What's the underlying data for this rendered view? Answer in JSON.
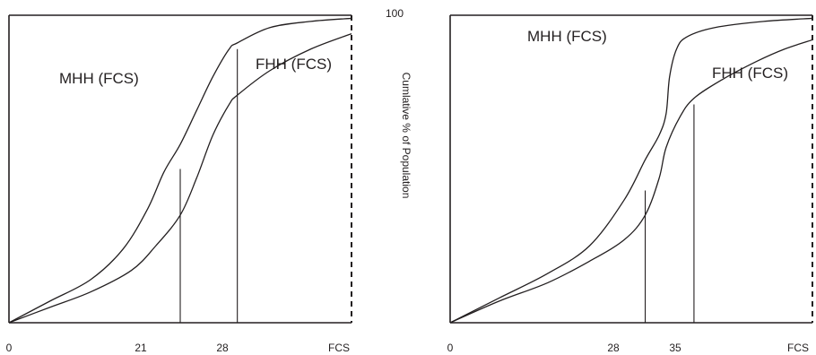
{
  "chart_data": [
    {
      "type": "line",
      "title": "",
      "xlabel": "FCS",
      "ylabel": "Cumlative % of Population",
      "ylim": [
        0,
        100
      ],
      "x_ticks": [
        "0",
        "21",
        "28",
        "FCS"
      ],
      "series": [
        {
          "name": "MHH (FCS)",
          "points": [
            [
              0,
              0
            ],
            [
              5,
              7
            ],
            [
              10,
              14
            ],
            [
              14,
              24
            ],
            [
              17,
              37
            ],
            [
              19,
              49
            ],
            [
              21,
              58
            ],
            [
              23,
              69
            ],
            [
              25,
              80
            ],
            [
              27,
              89
            ],
            [
              28,
              91
            ],
            [
              32,
              96
            ],
            [
              37,
              98
            ],
            [
              42,
              99
            ]
          ]
        },
        {
          "name": "FHH (FCS)",
          "points": [
            [
              0,
              0
            ],
            [
              5,
              5
            ],
            [
              10,
              10
            ],
            [
              15,
              17
            ],
            [
              18,
              25
            ],
            [
              21,
              35
            ],
            [
              23,
              47
            ],
            [
              25,
              61
            ],
            [
              27,
              71
            ],
            [
              28,
              74
            ],
            [
              32,
              82
            ],
            [
              37,
              89
            ],
            [
              42,
              94
            ]
          ]
        }
      ],
      "marker_lines": [
        {
          "x": 21,
          "y": 50
        },
        {
          "x": 28,
          "y": 89
        }
      ],
      "xlim": [
        0,
        42
      ]
    },
    {
      "type": "line",
      "title": "",
      "xlabel": "FCS",
      "ylabel": "",
      "ylim": [
        0,
        100
      ],
      "x_ticks": [
        "0",
        "28",
        "35",
        "FCS"
      ],
      "series": [
        {
          "name": "MHH (FCS)",
          "points": [
            [
              0,
              0
            ],
            [
              7,
              8
            ],
            [
              14,
              16
            ],
            [
              20,
              25
            ],
            [
              25,
              40
            ],
            [
              28,
              53
            ],
            [
              30,
              61
            ],
            [
              31,
              68
            ],
            [
              31.5,
              80
            ],
            [
              32.5,
              89
            ],
            [
              34,
              93
            ],
            [
              38,
              96
            ],
            [
              45,
              98
            ],
            [
              52,
              99
            ]
          ]
        },
        {
          "name": "FHH (FCS)",
          "points": [
            [
              0,
              0
            ],
            [
              7,
              7
            ],
            [
              14,
              13
            ],
            [
              20,
              20
            ],
            [
              25,
              27
            ],
            [
              28,
              35
            ],
            [
              30,
              47
            ],
            [
              31,
              57
            ],
            [
              33,
              67
            ],
            [
              35,
              73
            ],
            [
              39,
              79
            ],
            [
              44,
              85
            ],
            [
              48,
              89
            ],
            [
              52,
              92
            ]
          ]
        }
      ],
      "marker_lines": [
        {
          "x": 28,
          "y": 43
        },
        {
          "x": 35,
          "y": 71
        }
      ],
      "xlim": [
        0,
        52
      ]
    }
  ],
  "axis_top_label": "100"
}
